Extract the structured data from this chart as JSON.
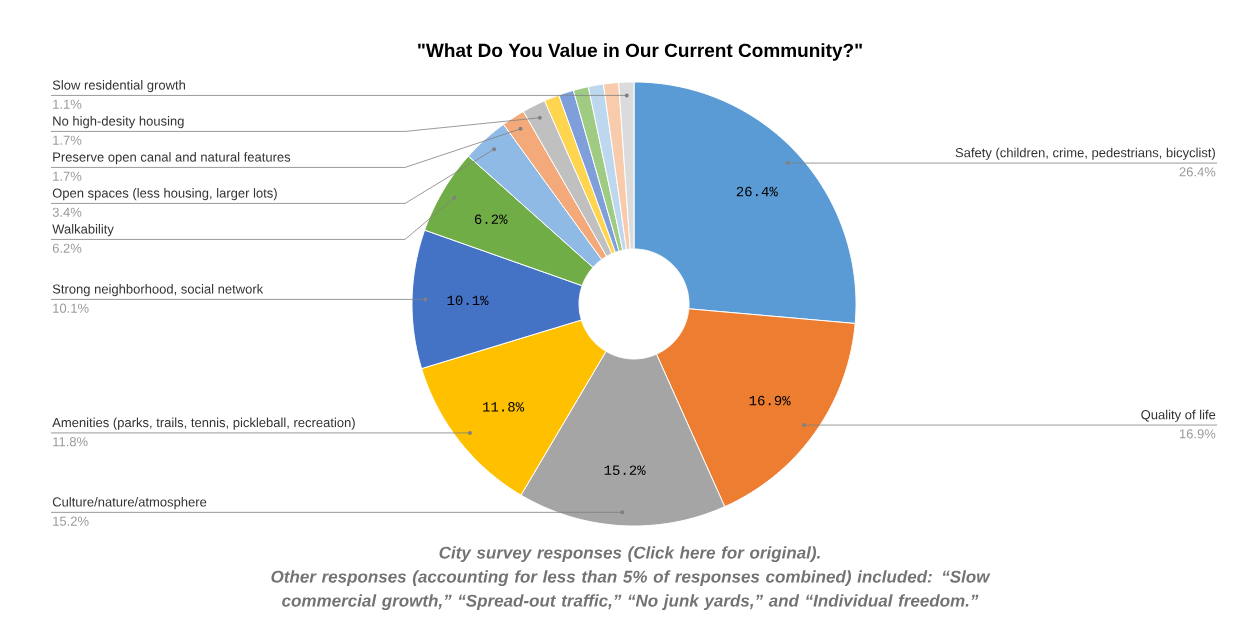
{
  "chart_data": {
    "type": "donut",
    "title": "\"What Do You Value in Our Current Community?\"",
    "categories": [
      "Safety (children, crime, pedestrians, bicyclist)",
      "Quality of life",
      "Culture/nature/atmosphere",
      "Amenities (parks, trails, tennis, pickleball, recreation)",
      "Strong neighborhood, social network",
      "Walkability",
      "Open spaces (less housing, larger lots)",
      "Preserve open canal and natural features",
      "No high-desity housing",
      null,
      null,
      null,
      null,
      null,
      "Slow residential growth"
    ],
    "values": [
      26.4,
      16.9,
      15.2,
      11.8,
      10.1,
      6.2,
      3.4,
      1.7,
      1.7,
      1.1,
      1.1,
      1.1,
      1.1,
      1.1,
      1.1
    ],
    "value_labels": [
      "26.4%",
      "16.9%",
      "15.2%",
      "11.8%",
      "10.1%",
      "6.2%",
      "3.4%",
      "1.7%",
      "1.7%",
      null,
      null,
      null,
      null,
      null,
      "1.1%"
    ],
    "colors": [
      "#5b9bd5",
      "#ed7d31",
      "#a5a5a5",
      "#ffc000",
      "#4472c4",
      "#70ad47",
      "#8fbae5",
      "#f4a97a",
      "#c0c0c0",
      "#ffd54f",
      "#7f9fdb",
      "#9fcb83",
      "#bdd7ee",
      "#f8cbad",
      "#dbdbdb"
    ],
    "annotations": [
      "City survey responses (Click here for original).",
      "Other responses (accounting for less than 5% of responses combined) included: “Slow commercial growth,” “Spread-out traffic,” “No junk yards,” and “Individual freedom.”"
    ]
  }
}
